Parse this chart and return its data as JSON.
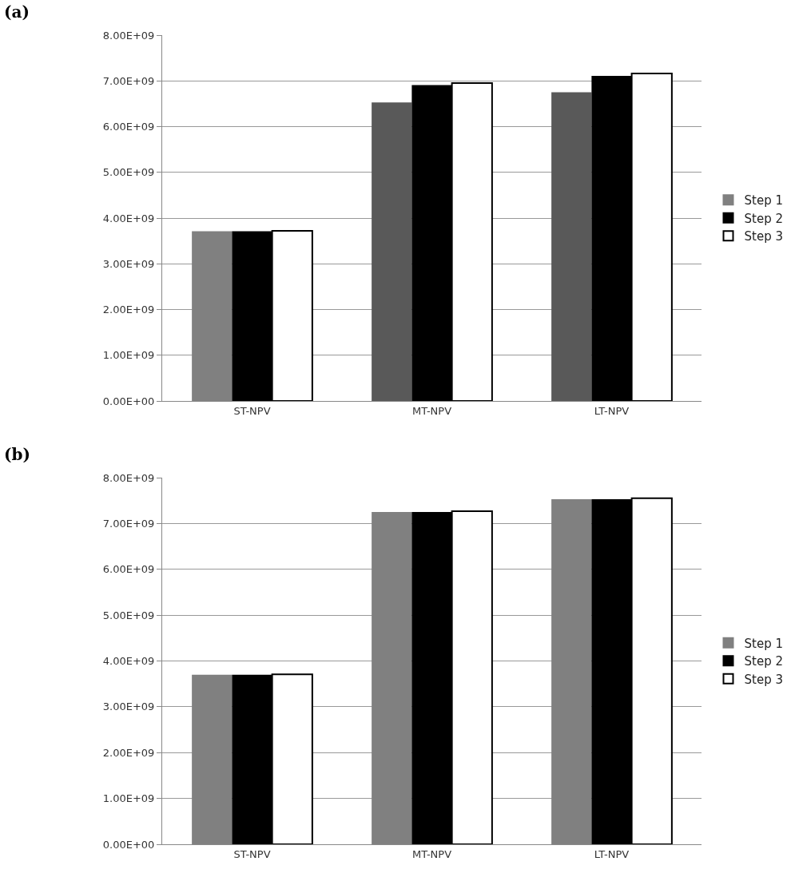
{
  "chart_data": [
    {
      "type": "bar",
      "title": "(a)",
      "categories": [
        "ST-NPV",
        "MT-NPV",
        "LT-NPV"
      ],
      "series": [
        {
          "name": "Step 1",
          "color": "#808080",
          "colors": [
            null,
            "#595959",
            "#595959"
          ],
          "values": [
            3710000000,
            6530000000,
            6750000000
          ]
        },
        {
          "name": "Step 2",
          "color": "#000000",
          "values": [
            3710000000,
            6910000000,
            7110000000
          ]
        },
        {
          "name": "Step 3",
          "color": "#ffffff",
          "values": [
            3720000000,
            6950000000,
            7160000000
          ]
        }
      ],
      "ylim": [
        0,
        8000000000
      ],
      "yticks": [
        {
          "value": 0,
          "label": "0.00E+00"
        },
        {
          "value": 1000000000,
          "label": "1.00E+09"
        },
        {
          "value": 2000000000,
          "label": "2.00E+09"
        },
        {
          "value": 3000000000,
          "label": "3.00E+09"
        },
        {
          "value": 4000000000,
          "label": "4.00E+09"
        },
        {
          "value": 5000000000,
          "label": "5.00E+09"
        },
        {
          "value": 6000000000,
          "label": "6.00E+09"
        },
        {
          "value": 7000000000,
          "label": "7.00E+09"
        },
        {
          "value": 8000000000,
          "label": "8.00E+09"
        }
      ],
      "grid": "y",
      "legend": "right"
    },
    {
      "type": "bar",
      "title": "(b)",
      "categories": [
        "ST-NPV",
        "MT-NPV",
        "LT-NPV"
      ],
      "series": [
        {
          "name": "Step 1",
          "color": "#808080",
          "values": [
            3700000000,
            7250000000,
            7530000000
          ]
        },
        {
          "name": "Step 2",
          "color": "#000000",
          "values": [
            3700000000,
            7250000000,
            7530000000
          ]
        },
        {
          "name": "Step 3",
          "color": "#ffffff",
          "values": [
            3710000000,
            7270000000,
            7550000000
          ]
        }
      ],
      "ylim": [
        0,
        8000000000
      ],
      "yticks": [
        {
          "value": 0,
          "label": "0.00E+00"
        },
        {
          "value": 1000000000,
          "label": "1.00E+09"
        },
        {
          "value": 2000000000,
          "label": "2.00E+09"
        },
        {
          "value": 3000000000,
          "label": "3.00E+09"
        },
        {
          "value": 4000000000,
          "label": "4.00E+09"
        },
        {
          "value": 5000000000,
          "label": "5.00E+09"
        },
        {
          "value": 6000000000,
          "label": "6.00E+09"
        },
        {
          "value": 7000000000,
          "label": "7.00E+09"
        },
        {
          "value": 8000000000,
          "label": "8.00E+09"
        }
      ],
      "grid": "y",
      "legend": "right"
    }
  ]
}
